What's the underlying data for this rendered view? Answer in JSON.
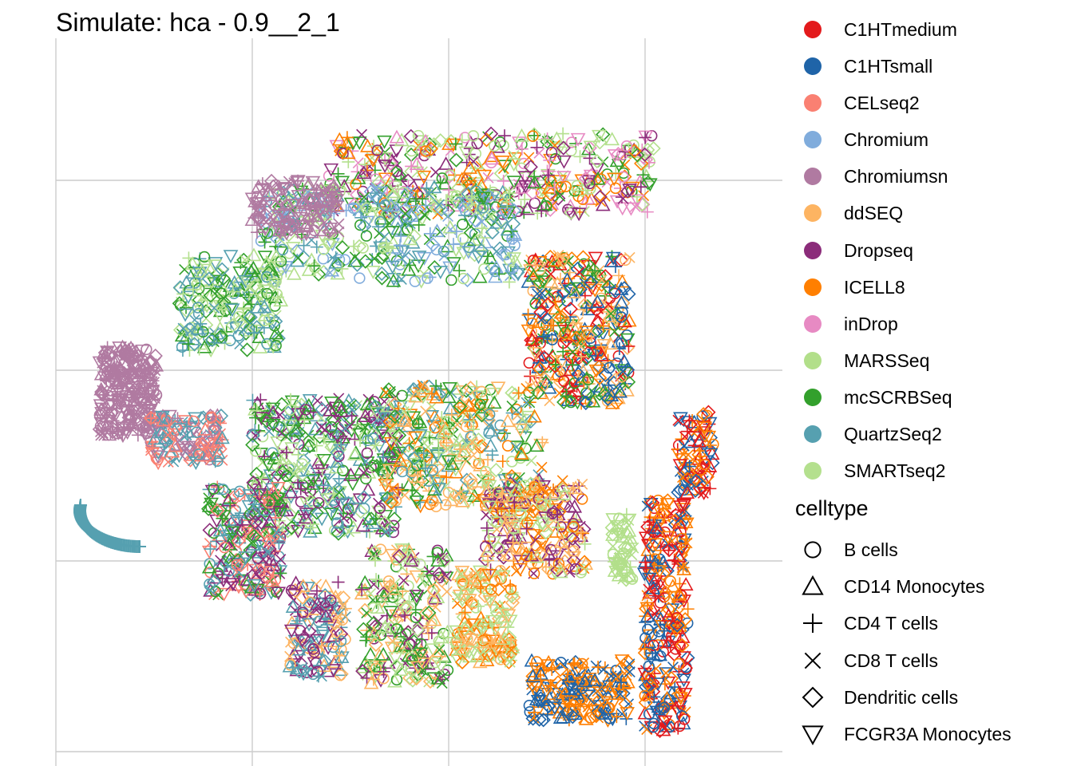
{
  "chart_data": {
    "type": "scatter",
    "title": "Simulate: hca - 0.9__2_1",
    "xlabel": "",
    "ylabel": "",
    "grid": true,
    "legend_position": "right",
    "color_legend": {
      "title": "",
      "entries": [
        {
          "name": "C1HTmedium",
          "color": "#E31A1C"
        },
        {
          "name": "C1HTsmall",
          "color": "#1F64A8"
        },
        {
          "name": "CELseq2",
          "color": "#FA8072"
        },
        {
          "name": "Chromium",
          "color": "#80ACDC"
        },
        {
          "name": "Chromiumsn",
          "color": "#B07AA1"
        },
        {
          "name": "ddSEQ",
          "color": "#FDB462"
        },
        {
          "name": "Dropseq",
          "color": "#8B2C7A"
        },
        {
          "name": "ICELL8",
          "color": "#FF7F00"
        },
        {
          "name": "inDrop",
          "color": "#E78AC3"
        },
        {
          "name": "MARSSeq",
          "color": "#B2DF8A"
        },
        {
          "name": "mcSCRBSeq",
          "color": "#33A02C"
        },
        {
          "name": "QuartzSeq2",
          "color": "#56A0B0"
        },
        {
          "name": "SMARTseq2",
          "color": "#B4E08E"
        }
      ]
    },
    "shape_legend": {
      "title": "celltype",
      "entries": [
        {
          "name": "B cells",
          "shape": "circle"
        },
        {
          "name": "CD14 Monocytes",
          "shape": "triangle-up"
        },
        {
          "name": "CD4 T cells",
          "shape": "plus"
        },
        {
          "name": "CD8 T cells",
          "shape": "cross"
        },
        {
          "name": "Dendritic cells",
          "shape": "diamond"
        },
        {
          "name": "FCGR3A Monocytes",
          "shape": "triangle-down"
        }
      ]
    },
    "clusters": [
      {
        "x": 0.6,
        "y": 0.85,
        "w": 0.45,
        "h": 0.12,
        "colors": [
          "#FF7F00",
          "#33A02C",
          "#E78AC3",
          "#B4E08E",
          "#8B2C7A"
        ],
        "n": 420
      },
      {
        "x": 0.46,
        "y": 0.76,
        "w": 0.36,
        "h": 0.14,
        "colors": [
          "#56A0B0",
          "#33A02C",
          "#B4E08E",
          "#80ACDC"
        ],
        "n": 380
      },
      {
        "x": 0.33,
        "y": 0.8,
        "w": 0.12,
        "h": 0.08,
        "colors": [
          "#B07AA1"
        ],
        "n": 120
      },
      {
        "x": 0.24,
        "y": 0.66,
        "w": 0.14,
        "h": 0.14,
        "colors": [
          "#B4E08E",
          "#56A0B0",
          "#33A02C"
        ],
        "n": 220
      },
      {
        "x": 0.1,
        "y": 0.53,
        "w": 0.08,
        "h": 0.13,
        "colors": [
          "#B07AA1"
        ],
        "n": 260
      },
      {
        "x": 0.18,
        "y": 0.46,
        "w": 0.1,
        "h": 0.07,
        "colors": [
          "#FA8072",
          "#B07AA1",
          "#56A0B0"
        ],
        "n": 140
      },
      {
        "x": 0.72,
        "y": 0.62,
        "w": 0.14,
        "h": 0.22,
        "colors": [
          "#FF7F00",
          "#1F64A8",
          "#E31A1C",
          "#33A02C",
          "#FDB462"
        ],
        "n": 380
      },
      {
        "x": 0.88,
        "y": 0.44,
        "w": 0.05,
        "h": 0.12,
        "colors": [
          "#FF7F00",
          "#E31A1C",
          "#1F64A8"
        ],
        "n": 90
      },
      {
        "x": 0.37,
        "y": 0.42,
        "w": 0.2,
        "h": 0.2,
        "colors": [
          "#33A02C",
          "#8B2C7A",
          "#56A0B0",
          "#B4E08E"
        ],
        "n": 420
      },
      {
        "x": 0.56,
        "y": 0.45,
        "w": 0.22,
        "h": 0.18,
        "colors": [
          "#B4E08E",
          "#33A02C",
          "#56A0B0",
          "#FF7F00",
          "#FDB462"
        ],
        "n": 360
      },
      {
        "x": 0.66,
        "y": 0.33,
        "w": 0.14,
        "h": 0.14,
        "colors": [
          "#FF7F00",
          "#FDB462",
          "#8B2C7A",
          "#B4E08E"
        ],
        "n": 240
      },
      {
        "x": 0.26,
        "y": 0.31,
        "w": 0.1,
        "h": 0.16,
        "colors": [
          "#56A0B0",
          "#8B2C7A",
          "#33A02C",
          "#FA8072"
        ],
        "n": 220
      },
      {
        "x": 0.84,
        "y": 0.2,
        "w": 0.06,
        "h": 0.34,
        "colors": [
          "#FF7F00",
          "#1F64A8",
          "#E31A1C"
        ],
        "n": 300
      },
      {
        "x": 0.72,
        "y": 0.09,
        "w": 0.14,
        "h": 0.09,
        "colors": [
          "#FF7F00",
          "#1F64A8"
        ],
        "n": 200
      },
      {
        "x": 0.48,
        "y": 0.2,
        "w": 0.12,
        "h": 0.2,
        "colors": [
          "#B4E08E",
          "#33A02C",
          "#8B2C7A",
          "#FDB462"
        ],
        "n": 240
      },
      {
        "x": 0.59,
        "y": 0.2,
        "w": 0.08,
        "h": 0.14,
        "colors": [
          "#B4E08E",
          "#FDB462",
          "#FF7F00"
        ],
        "n": 160
      },
      {
        "x": 0.36,
        "y": 0.18,
        "w": 0.08,
        "h": 0.14,
        "colors": [
          "#56A0B0",
          "#8B2C7A",
          "#FDB462"
        ],
        "n": 140
      },
      {
        "x": 0.78,
        "y": 0.3,
        "w": 0.03,
        "h": 0.1,
        "colors": [
          "#B2DF8A"
        ],
        "n": 50
      },
      {
        "x": 0.14,
        "y": 0.27,
        "w": 0.14,
        "h": 0.09,
        "colors": [
          "#56A0B0"
        ],
        "n": 0
      }
    ]
  }
}
